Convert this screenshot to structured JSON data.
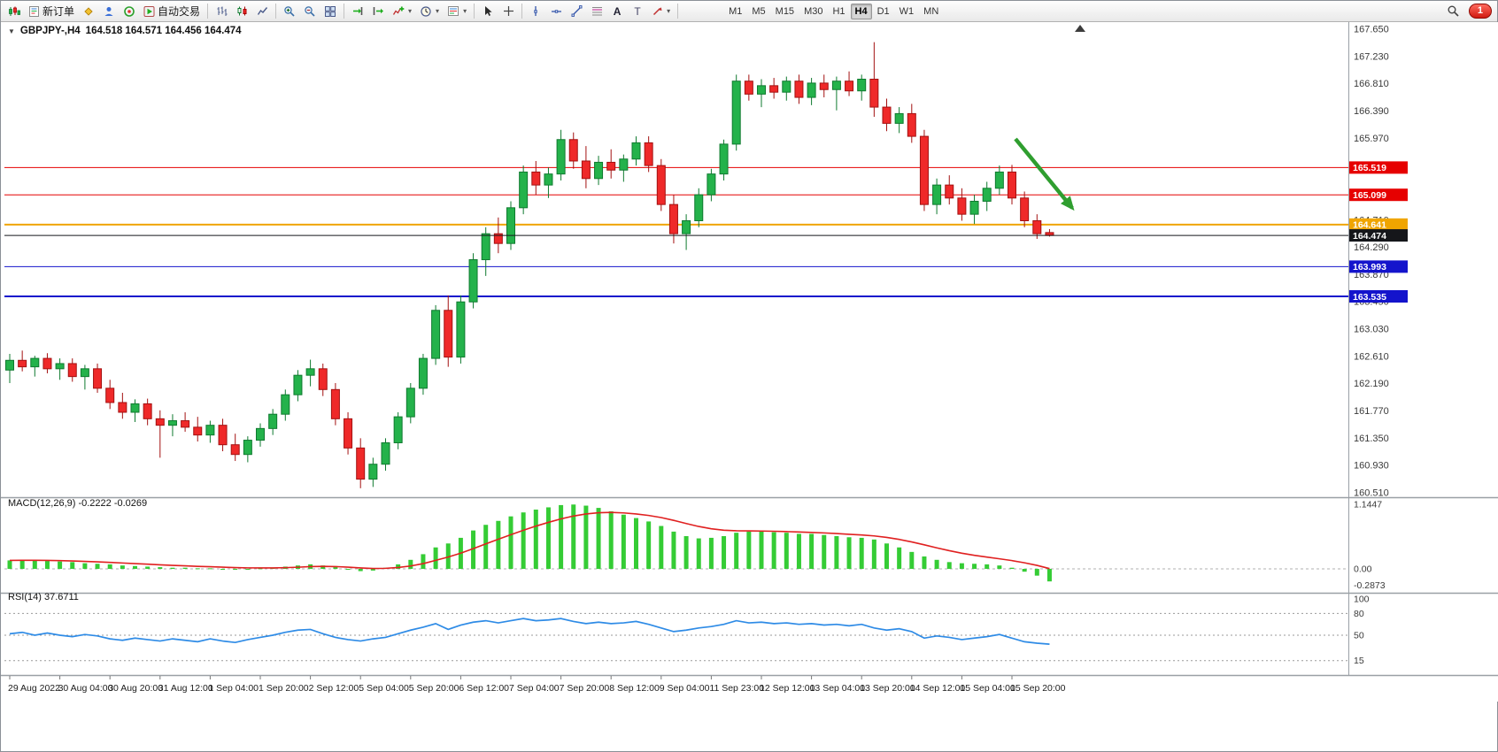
{
  "window": {
    "badge_count": "1"
  },
  "toolbar": {
    "new_order_label": "新订单",
    "autotrading_label": "自动交易",
    "timeframes": [
      "M1",
      "M5",
      "M15",
      "M30",
      "H1",
      "H4",
      "D1",
      "W1",
      "MN"
    ],
    "active_timeframe": "H4"
  },
  "chart": {
    "symbol_period": "GBPJPY-,H4",
    "ohlc_text": "164.518 164.571 164.456 164.474",
    "price_max": 167.65,
    "price_min": 160.51,
    "scale_labels": [
      "167.650",
      "167.230",
      "166.810",
      "166.390",
      "165.970",
      "165.550",
      "165.130",
      "164.710",
      "164.290",
      "163.870",
      "163.450",
      "163.030",
      "162.610",
      "162.190",
      "161.770",
      "161.350",
      "160.930",
      "160.510"
    ],
    "levels": [
      {
        "label": "165.519",
        "price": 165.519,
        "color": "#e60000",
        "width": 1,
        "current": false
      },
      {
        "label": "165.099",
        "price": 165.099,
        "color": "#e60000",
        "width": 1,
        "current": false
      },
      {
        "label": "164.641",
        "price": 164.641,
        "color": "#f0a500",
        "width": 2,
        "current": false
      },
      {
        "label": "164.474",
        "price": 164.474,
        "color": "#15161a",
        "width": 1,
        "current": true
      },
      {
        "label": "163.993",
        "price": 163.993,
        "color": "#1414cc",
        "width": 1,
        "current": false
      },
      {
        "label": "163.535",
        "price": 163.535,
        "color": "#1414cc",
        "width": 2,
        "current": false
      }
    ]
  },
  "chart_data": {
    "type": "candlestick",
    "symbol": "GBPJPY-",
    "timeframe": "H4",
    "up_color": "#24b24b",
    "down_color": "#ef2929",
    "label_every_n_candles": 4,
    "x_labels": [
      "29 Aug 2022",
      "30 Aug 04:00",
      "30 Aug 20:00",
      "31 Aug 12:00",
      "1 Sep 04:00",
      "1 Sep 20:00",
      "2 Sep 12:00",
      "5 Sep 04:00",
      "5 Sep 20:00",
      "6 Sep 12:00",
      "7 Sep 04:00",
      "7 Sep 20:00",
      "8 Sep 12:00",
      "9 Sep 04:00",
      "11 Sep 23:00",
      "12 Sep 12:00",
      "13 Sep 04:00",
      "13 Sep 20:00",
      "14 Sep 12:00",
      "15 Sep 04:00",
      "15 Sep 20:00"
    ],
    "candles": [
      [
        162.4,
        162.65,
        162.2,
        162.55
      ],
      [
        162.55,
        162.7,
        162.38,
        162.45
      ],
      [
        162.45,
        162.62,
        162.3,
        162.58
      ],
      [
        162.58,
        162.66,
        162.35,
        162.42
      ],
      [
        162.42,
        162.58,
        162.25,
        162.5
      ],
      [
        162.5,
        162.58,
        162.22,
        162.3
      ],
      [
        162.3,
        162.48,
        162.1,
        162.42
      ],
      [
        162.42,
        162.5,
        162.05,
        162.12
      ],
      [
        162.12,
        162.25,
        161.8,
        161.9
      ],
      [
        161.9,
        162.05,
        161.65,
        161.75
      ],
      [
        161.75,
        161.95,
        161.6,
        161.88
      ],
      [
        161.88,
        161.96,
        161.55,
        161.65
      ],
      [
        161.65,
        161.78,
        161.05,
        161.55
      ],
      [
        161.55,
        161.72,
        161.38,
        161.62
      ],
      [
        161.62,
        161.75,
        161.45,
        161.52
      ],
      [
        161.52,
        161.68,
        161.3,
        161.4
      ],
      [
        161.4,
        161.62,
        161.28,
        161.55
      ],
      [
        161.55,
        161.65,
        161.15,
        161.25
      ],
      [
        161.25,
        161.42,
        161.0,
        161.1
      ],
      [
        161.1,
        161.38,
        160.98,
        161.32
      ],
      [
        161.32,
        161.58,
        161.22,
        161.5
      ],
      [
        161.5,
        161.8,
        161.4,
        161.72
      ],
      [
        161.72,
        162.1,
        161.62,
        162.02
      ],
      [
        162.02,
        162.4,
        161.92,
        162.32
      ],
      [
        162.32,
        162.56,
        162.15,
        162.42
      ],
      [
        162.42,
        162.5,
        162.0,
        162.1
      ],
      [
        162.1,
        162.2,
        161.55,
        161.65
      ],
      [
        161.65,
        161.75,
        161.1,
        161.2
      ],
      [
        161.2,
        161.35,
        160.58,
        160.72
      ],
      [
        160.72,
        161.05,
        160.6,
        160.95
      ],
      [
        160.95,
        161.35,
        160.85,
        161.28
      ],
      [
        161.28,
        161.75,
        161.18,
        161.68
      ],
      [
        161.68,
        162.2,
        161.58,
        162.12
      ],
      [
        162.12,
        162.65,
        162.02,
        162.58
      ],
      [
        162.58,
        163.4,
        162.48,
        163.32
      ],
      [
        163.32,
        163.55,
        162.45,
        162.6
      ],
      [
        162.6,
        163.55,
        162.5,
        163.45
      ],
      [
        163.45,
        164.2,
        163.35,
        164.1
      ],
      [
        164.1,
        164.6,
        163.85,
        164.5
      ],
      [
        164.5,
        164.75,
        164.2,
        164.35
      ],
      [
        164.35,
        165.0,
        164.25,
        164.9
      ],
      [
        164.9,
        165.55,
        164.8,
        165.45
      ],
      [
        165.45,
        165.62,
        165.1,
        165.25
      ],
      [
        165.25,
        165.52,
        165.05,
        165.42
      ],
      [
        165.42,
        166.1,
        165.32,
        165.95
      ],
      [
        165.95,
        166.06,
        165.5,
        165.62
      ],
      [
        165.62,
        165.85,
        165.2,
        165.35
      ],
      [
        165.35,
        165.7,
        165.25,
        165.6
      ],
      [
        165.6,
        165.8,
        165.35,
        165.48
      ],
      [
        165.48,
        165.72,
        165.3,
        165.65
      ],
      [
        165.65,
        166.0,
        165.55,
        165.9
      ],
      [
        165.9,
        166.0,
        165.45,
        165.55
      ],
      [
        165.55,
        165.65,
        164.85,
        164.95
      ],
      [
        164.95,
        165.1,
        164.35,
        164.5
      ],
      [
        164.5,
        164.8,
        164.25,
        164.7
      ],
      [
        164.7,
        165.2,
        164.6,
        165.1
      ],
      [
        165.1,
        165.5,
        165.0,
        165.42
      ],
      [
        165.42,
        165.95,
        165.32,
        165.88
      ],
      [
        165.88,
        166.95,
        165.78,
        166.85
      ],
      [
        166.85,
        166.95,
        166.55,
        166.65
      ],
      [
        166.65,
        166.88,
        166.45,
        166.78
      ],
      [
        166.78,
        166.9,
        166.58,
        166.68
      ],
      [
        166.68,
        166.92,
        166.55,
        166.85
      ],
      [
        166.85,
        166.95,
        166.5,
        166.6
      ],
      [
        166.6,
        166.9,
        166.48,
        166.82
      ],
      [
        166.82,
        166.95,
        166.6,
        166.72
      ],
      [
        166.72,
        166.92,
        166.4,
        166.85
      ],
      [
        166.85,
        167.0,
        166.62,
        166.7
      ],
      [
        166.7,
        166.95,
        166.55,
        166.88
      ],
      [
        166.88,
        167.45,
        166.3,
        166.45
      ],
      [
        166.45,
        166.58,
        166.08,
        166.2
      ],
      [
        166.2,
        166.45,
        166.05,
        166.35
      ],
      [
        166.35,
        166.5,
        165.9,
        166.0
      ],
      [
        166.0,
        166.1,
        164.85,
        164.95
      ],
      [
        164.95,
        165.35,
        164.8,
        165.25
      ],
      [
        165.25,
        165.4,
        164.95,
        165.05
      ],
      [
        165.05,
        165.2,
        164.7,
        164.8
      ],
      [
        164.8,
        165.1,
        164.65,
        165.0
      ],
      [
        165.0,
        165.3,
        164.85,
        165.2
      ],
      [
        165.2,
        165.55,
        165.1,
        165.45
      ],
      [
        165.45,
        165.56,
        164.95,
        165.05
      ],
      [
        165.05,
        165.15,
        164.6,
        164.7
      ],
      [
        164.7,
        164.8,
        164.42,
        164.5
      ],
      [
        164.518,
        164.571,
        164.456,
        164.474
      ]
    ]
  },
  "macd": {
    "label": "MACD(12,26,9) -0.2222 -0.0269",
    "fast": 12,
    "slow": 26,
    "signal_period": 9,
    "current_macd": -0.2222,
    "current_signal": -0.0269,
    "scale_labels": [
      "1.1447",
      "0.00",
      "-0.2873"
    ],
    "scale_values": [
      1.1447,
      0,
      -0.2873
    ],
    "histogram_color": "#35cc35",
    "signal_color": "#e02020",
    "histogram": [
      0.15,
      0.16,
      0.15,
      0.14,
      0.13,
      0.12,
      0.1,
      0.09,
      0.08,
      0.06,
      0.05,
      0.04,
      0.03,
      0.02,
      0.02,
      0.01,
      0.01,
      0.0,
      -0.01,
      0.0,
      0.01,
      0.02,
      0.04,
      0.06,
      0.08,
      0.06,
      0.03,
      -0.01,
      -0.04,
      -0.03,
      0.02,
      0.08,
      0.16,
      0.26,
      0.38,
      0.45,
      0.55,
      0.68,
      0.78,
      0.85,
      0.93,
      1.0,
      1.05,
      1.09,
      1.13,
      1.14,
      1.12,
      1.08,
      1.02,
      0.96,
      0.9,
      0.84,
      0.76,
      0.66,
      0.58,
      0.54,
      0.55,
      0.58,
      0.64,
      0.66,
      0.66,
      0.65,
      0.64,
      0.62,
      0.62,
      0.6,
      0.58,
      0.56,
      0.55,
      0.52,
      0.45,
      0.38,
      0.3,
      0.22,
      0.16,
      0.12,
      0.1,
      0.09,
      0.08,
      0.06,
      0.02,
      -0.05,
      -0.12,
      -0.2222
    ]
  },
  "rsi": {
    "label": "RSI(14) 37.6711",
    "period": 14,
    "current_value": 37.6711,
    "levels": [
      80,
      50,
      15
    ],
    "scale_labels": [
      "100",
      "80",
      "50",
      "15"
    ],
    "scale_values": [
      100,
      80,
      50,
      15
    ],
    "line_color": "#2e8be6",
    "values": [
      52,
      54,
      50,
      53,
      50,
      48,
      51,
      49,
      45,
      43,
      46,
      44,
      42,
      45,
      43,
      41,
      45,
      42,
      40,
      44,
      47,
      50,
      54,
      57,
      58,
      52,
      47,
      44,
      42,
      45,
      47,
      52,
      57,
      61,
      66,
      58,
      64,
      68,
      70,
      67,
      70,
      73,
      70,
      71,
      73,
      69,
      66,
      68,
      66,
      67,
      69,
      65,
      60,
      55,
      57,
      60,
      62,
      65,
      70,
      67,
      68,
      66,
      67,
      65,
      66,
      64,
      65,
      63,
      65,
      60,
      57,
      59,
      55,
      46,
      49,
      47,
      44,
      46,
      48,
      51,
      46,
      41,
      39,
      37.67
    ]
  },
  "annotation": {
    "type": "arrow",
    "direction": "down-right",
    "color": "#2f9e2f"
  }
}
